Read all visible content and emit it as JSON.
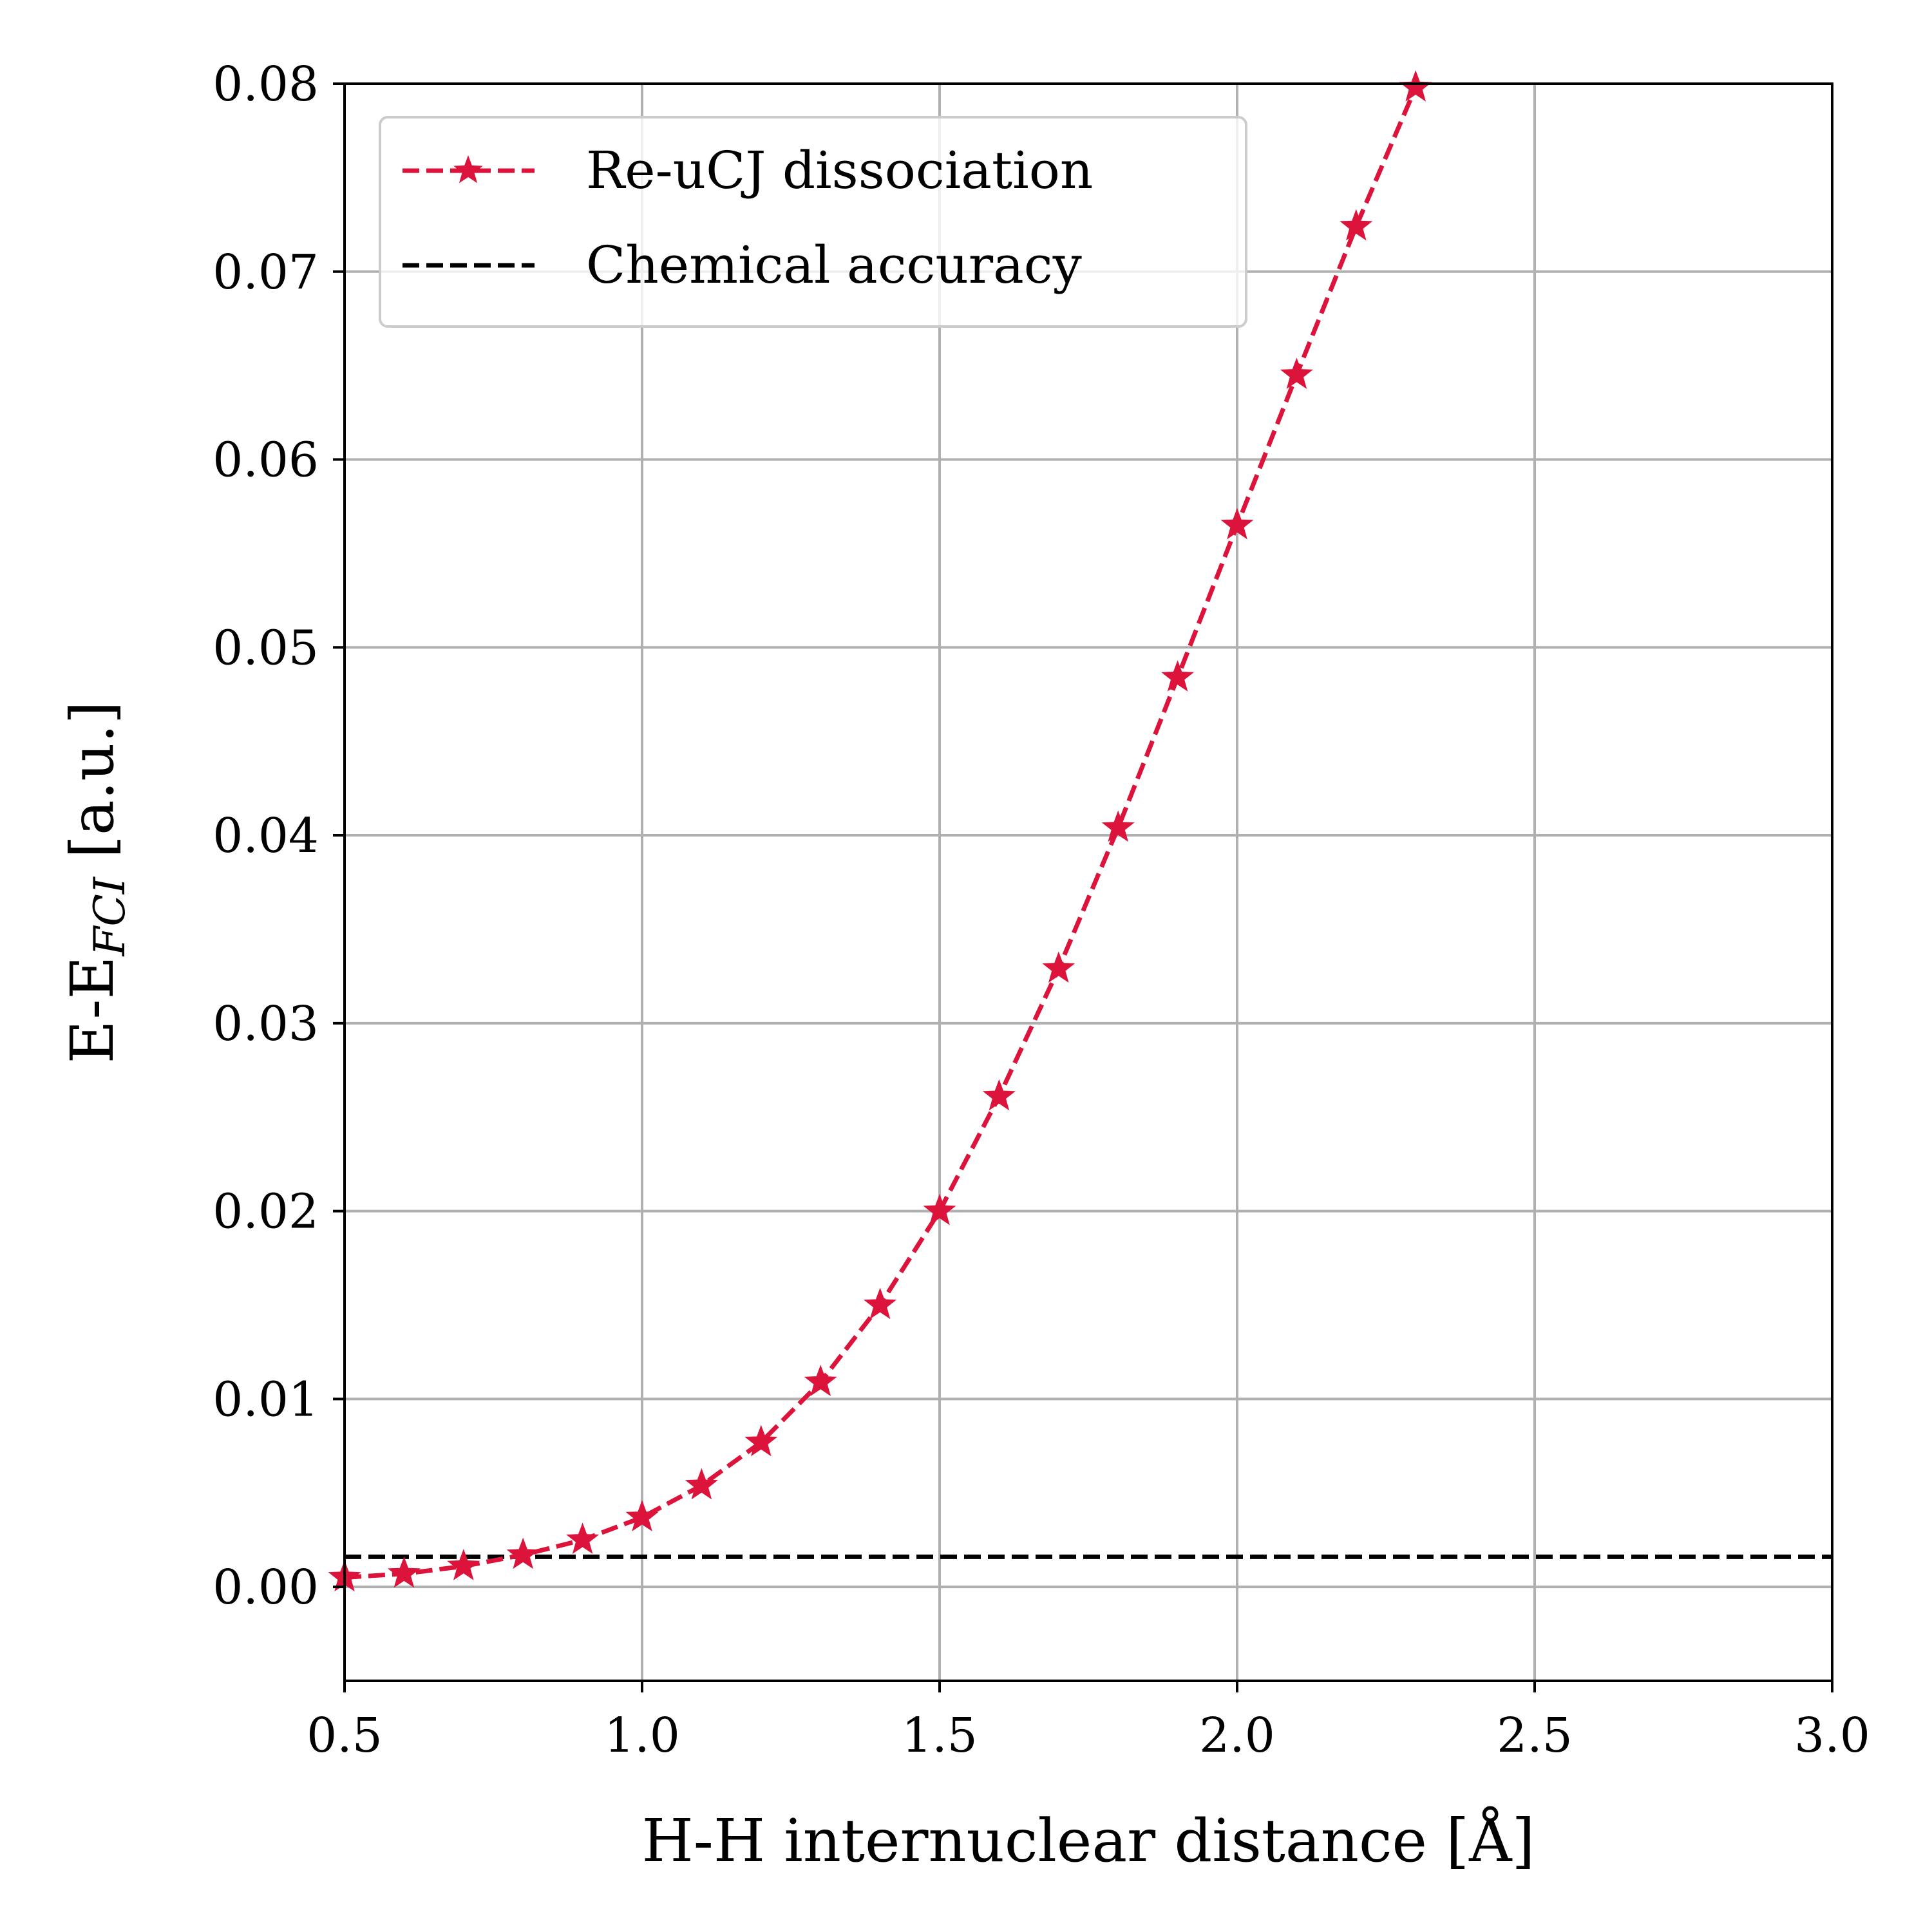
{
  "chart_data": {
    "type": "line",
    "xlabel": "H-H internuclear distance [Å]",
    "ylabel_main": "E-E",
    "ylabel_sub": "FCI",
    "ylabel_unit": " [a.u.]",
    "xlim": [
      0.5,
      3.0
    ],
    "ylim": [
      -0.005,
      0.08
    ],
    "xticks": [
      0.5,
      1.0,
      1.5,
      2.0,
      2.5,
      3.0
    ],
    "xtick_labels": [
      "0.5",
      "1.0",
      "1.5",
      "2.0",
      "2.5",
      "3.0"
    ],
    "yticks": [
      0.0,
      0.01,
      0.02,
      0.03,
      0.04,
      0.05,
      0.06,
      0.07,
      0.08
    ],
    "ytick_labels": [
      "0.00",
      "0.01",
      "0.02",
      "0.03",
      "0.04",
      "0.05",
      "0.06",
      "0.07",
      "0.08"
    ],
    "grid": true,
    "legend_position": "top-left",
    "series": [
      {
        "name": "Re-uCJ dissociation",
        "color": "#dc143c",
        "line_style": "dashed",
        "marker": "star",
        "x": [
          0.5,
          0.6,
          0.7,
          0.8,
          0.9,
          1.0,
          1.1,
          1.2,
          1.3,
          1.4,
          1.5,
          1.6,
          1.7,
          1.8,
          1.9,
          2.0,
          2.1,
          2.2,
          2.3
        ],
        "y": [
          0.0005,
          0.0007,
          0.0011,
          0.0017,
          0.0025,
          0.0037,
          0.0054,
          0.0077,
          0.0109,
          0.015,
          0.02,
          0.0261,
          0.0329,
          0.0404,
          0.0484,
          0.0565,
          0.0645,
          0.0724,
          0.0798
        ]
      },
      {
        "name": "Chemical accuracy",
        "color": "#000000",
        "line_style": "dashed",
        "y_constant": 0.0016
      }
    ]
  }
}
